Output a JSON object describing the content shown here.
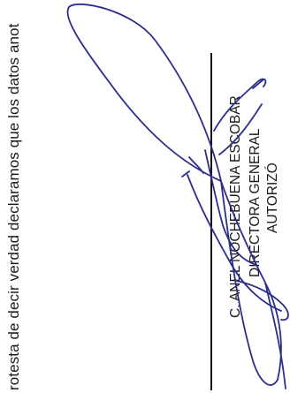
{
  "declaration_text": "rotesta de decir verdad declaramos que los datos anot",
  "signatory": {
    "name": "C. ANEL NOCHEBUENA ESCOBAR",
    "title": "DIRECTORA GENERAL",
    "action": "AUTORIZÓ"
  },
  "colors": {
    "ink_text": "#1a1a1a",
    "signature_ink": "#2b2e8c"
  }
}
